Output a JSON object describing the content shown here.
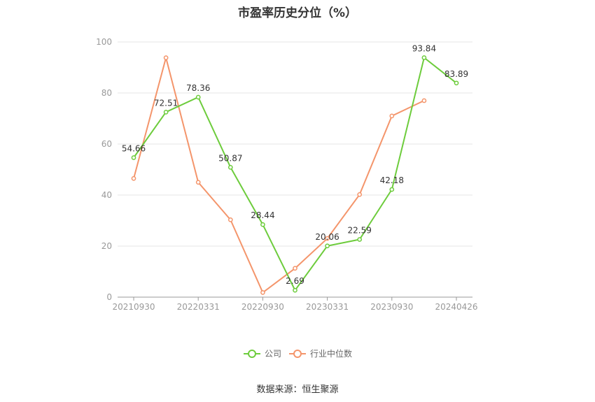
{
  "chart_data": {
    "type": "line",
    "title": "市盈率历史分位（%）",
    "source": "数据来源：恒生聚源",
    "ylim": [
      0,
      100
    ],
    "yticks": [
      0,
      20,
      40,
      60,
      80,
      100
    ],
    "xticks": [
      "20210930",
      "20220331",
      "20220930",
      "20230331",
      "20230930",
      "20240426"
    ],
    "x": [
      "20210930",
      "20211231",
      "20220331",
      "20220630",
      "20220930",
      "20221231",
      "20230331",
      "20230630",
      "20230930",
      "20231231",
      "20240426"
    ],
    "grid": true,
    "legend_position": "bottom",
    "series": [
      {
        "name": "公司",
        "color": "#6dcc3c",
        "values": [
          54.66,
          72.51,
          78.36,
          50.87,
          28.44,
          2.69,
          20.06,
          22.59,
          42.18,
          93.84,
          83.89
        ],
        "labels": [
          "54.66",
          "72.51",
          "78.36",
          "50.87",
          "28.44",
          "2.69",
          "20.06",
          "22.59",
          "42.18",
          "93.84",
          "83.89"
        ]
      },
      {
        "name": "行业中位数",
        "color": "#f4956b",
        "values": [
          46.5,
          93.8,
          45.0,
          30.3,
          1.8,
          11.3,
          23.0,
          40.2,
          71.0,
          77.0,
          null
        ],
        "labels": []
      }
    ]
  }
}
